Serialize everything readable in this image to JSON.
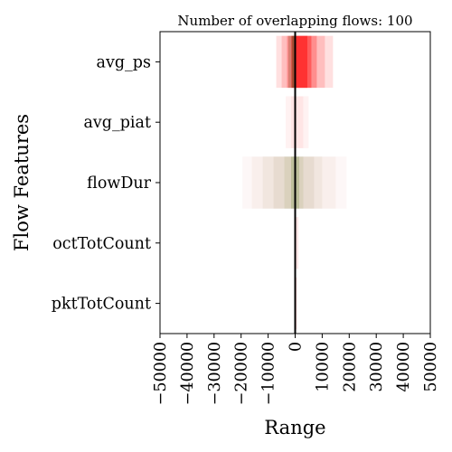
{
  "chart_data": {
    "type": "bar",
    "title": "Number of overlapping flows: 100",
    "xlabel": "Range",
    "ylabel": "Flow Features",
    "xlim": [
      -50000,
      50000
    ],
    "xticks": [
      -50000,
      -40000,
      -30000,
      -20000,
      -10000,
      0,
      10000,
      20000,
      30000,
      40000,
      50000
    ],
    "xtick_labels": [
      "−50000",
      "−40000",
      "−30000",
      "−20000",
      "−10000",
      "0",
      "10000",
      "20000",
      "30000",
      "40000",
      "50000"
    ],
    "categories": [
      "avg_ps",
      "avg_piat",
      "flowDur",
      "octTotCount",
      "pktTotCount"
    ],
    "vertical_line_at": 0,
    "grid": false,
    "features": [
      {
        "name": "avg_ps",
        "bands": [
          {
            "from": -7000,
            "to": 14000,
            "color": "#ff0000",
            "opacity": 0.12
          },
          {
            "from": -5000,
            "to": 11000,
            "color": "#ff0000",
            "opacity": 0.15
          },
          {
            "from": -3000,
            "to": 8000,
            "color": "#ff0000",
            "opacity": 0.25
          },
          {
            "from": -1500,
            "to": 6000,
            "color": "#ff0000",
            "opacity": 0.35
          },
          {
            "from": 0,
            "to": 4500,
            "color": "#ff0000",
            "opacity": 0.45
          },
          {
            "from": -2500,
            "to": 0,
            "color": "#6b4a1a",
            "opacity": 0.25
          },
          {
            "from": -1200,
            "to": 0,
            "color": "#4a3300",
            "opacity": 0.35
          }
        ]
      },
      {
        "name": "avg_piat",
        "bands": [
          {
            "from": -3500,
            "to": 5000,
            "color": "#ff0000",
            "opacity": 0.05
          },
          {
            "from": -1500,
            "to": 3000,
            "color": "#ff0000",
            "opacity": 0.05
          }
        ]
      },
      {
        "name": "flowDur",
        "bands": [
          {
            "from": -19500,
            "to": 19000,
            "color": "#e08a8a",
            "opacity": 0.07
          },
          {
            "from": -16000,
            "to": 15000,
            "color": "#c08a6a",
            "opacity": 0.07
          },
          {
            "from": -12000,
            "to": 10000,
            "color": "#9a7a4a",
            "opacity": 0.08
          },
          {
            "from": -8000,
            "to": 7000,
            "color": "#8a7040",
            "opacity": 0.09
          },
          {
            "from": -4000,
            "to": 3000,
            "color": "#7a8a3a",
            "opacity": 0.12
          },
          {
            "from": -1500,
            "to": 1500,
            "color": "#4a7a1a",
            "opacity": 0.2
          }
        ]
      },
      {
        "name": "octTotCount",
        "bands": [
          {
            "from": -200,
            "to": 1200,
            "color": "#ff0000",
            "opacity": 0.1
          }
        ]
      },
      {
        "name": "pktTotCount",
        "bands": [
          {
            "from": -100,
            "to": 600,
            "color": "#ff0000",
            "opacity": 0.15
          }
        ]
      }
    ]
  }
}
